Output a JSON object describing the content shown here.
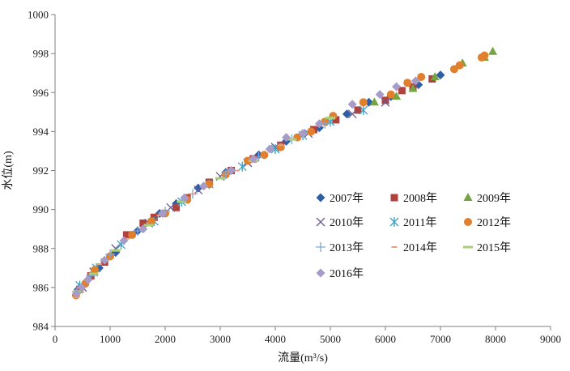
{
  "chart_data": {
    "type": "scatter",
    "xlabel": "流量(m³/s)",
    "ylabel": "水位(m)",
    "xlim": [
      0,
      9000
    ],
    "ylim": [
      984,
      1000
    ],
    "xticks": [
      "0",
      "1000",
      "2000",
      "3000",
      "4000",
      "5000",
      "6000",
      "7000",
      "8000",
      "9000"
    ],
    "yticks": [
      "984",
      "986",
      "988",
      "990",
      "992",
      "994",
      "996",
      "998",
      "1000"
    ],
    "grid": false,
    "legend_position": "inside-lower-right",
    "series": [
      {
        "name": "2007年",
        "marker": "diamond",
        "color": "#2e5fa6",
        "points": [
          [
            420,
            985.9
          ],
          [
            600,
            986.4
          ],
          [
            800,
            987.0
          ],
          [
            1100,
            987.8
          ],
          [
            1500,
            988.9
          ],
          [
            1900,
            989.8
          ],
          [
            2200,
            990.3
          ],
          [
            2600,
            991.1
          ],
          [
            3100,
            991.9
          ],
          [
            3700,
            992.8
          ],
          [
            4200,
            993.5
          ],
          [
            4800,
            994.2
          ],
          [
            5300,
            994.9
          ],
          [
            5700,
            995.5
          ],
          [
            6100,
            995.8
          ],
          [
            6600,
            996.4
          ],
          [
            7000,
            996.9
          ]
        ]
      },
      {
        "name": "2008年",
        "marker": "square",
        "color": "#b0413e",
        "points": [
          [
            450,
            985.9
          ],
          [
            650,
            986.6
          ],
          [
            900,
            987.3
          ],
          [
            1300,
            988.7
          ],
          [
            1600,
            989.3
          ],
          [
            1800,
            989.6
          ],
          [
            2200,
            990.1
          ],
          [
            2400,
            990.6
          ],
          [
            2800,
            991.4
          ],
          [
            3200,
            992.0
          ],
          [
            3600,
            992.6
          ],
          [
            4100,
            993.3
          ],
          [
            4700,
            994.1
          ],
          [
            5100,
            994.6
          ],
          [
            5500,
            995.1
          ],
          [
            6000,
            995.6
          ],
          [
            6300,
            996.1
          ],
          [
            6500,
            996.3
          ],
          [
            6850,
            996.7
          ]
        ]
      },
      {
        "name": "2009年",
        "marker": "triangle",
        "color": "#77a443",
        "points": [
          [
            5800,
            995.5
          ],
          [
            6200,
            995.8
          ],
          [
            6500,
            996.2
          ],
          [
            6900,
            996.8
          ],
          [
            7400,
            997.5
          ],
          [
            7800,
            997.8
          ],
          [
            7950,
            998.1
          ]
        ]
      },
      {
        "name": "2010年",
        "marker": "x",
        "color": "#6b5b95",
        "points": [
          [
            500,
            986.0
          ],
          [
            700,
            986.8
          ],
          [
            1100,
            988.0
          ],
          [
            1700,
            989.3
          ],
          [
            2100,
            990.1
          ],
          [
            2600,
            991.0
          ],
          [
            3000,
            991.7
          ],
          [
            3500,
            992.4
          ],
          [
            4000,
            993.2
          ],
          [
            4600,
            993.9
          ],
          [
            5400,
            994.9
          ],
          [
            6000,
            995.5
          ]
        ]
      },
      {
        "name": "2011年",
        "marker": "asterisk",
        "color": "#3aa2c2",
        "points": [
          [
            450,
            986.1
          ],
          [
            750,
            987.0
          ],
          [
            1200,
            988.2
          ],
          [
            1800,
            989.4
          ],
          [
            2300,
            990.4
          ],
          [
            2800,
            991.3
          ],
          [
            3400,
            992.2
          ],
          [
            4000,
            993.1
          ],
          [
            4500,
            993.8
          ],
          [
            5000,
            994.5
          ],
          [
            5600,
            995.1
          ]
        ]
      },
      {
        "name": "2012年",
        "marker": "circle",
        "color": "#e0802e",
        "points": [
          [
            380,
            985.6
          ],
          [
            550,
            986.2
          ],
          [
            720,
            986.9
          ],
          [
            1000,
            987.6
          ],
          [
            1400,
            988.7
          ],
          [
            1750,
            989.4
          ],
          [
            2000,
            989.8
          ],
          [
            2400,
            990.5
          ],
          [
            2800,
            991.3
          ],
          [
            3100,
            991.8
          ],
          [
            3500,
            992.5
          ],
          [
            3800,
            992.8
          ],
          [
            4100,
            993.2
          ],
          [
            4400,
            993.7
          ],
          [
            4650,
            994.0
          ],
          [
            4900,
            994.5
          ],
          [
            5050,
            994.8
          ],
          [
            5600,
            995.5
          ],
          [
            6100,
            995.9
          ],
          [
            6400,
            996.5
          ],
          [
            6650,
            996.8
          ],
          [
            7250,
            997.2
          ],
          [
            7350,
            997.4
          ],
          [
            7750,
            997.8
          ],
          [
            7800,
            997.9
          ]
        ]
      },
      {
        "name": "2013年",
        "marker": "plus",
        "color": "#7fa6d6",
        "points": [
          [
            400,
            985.8
          ],
          [
            650,
            986.6
          ],
          [
            1000,
            987.7
          ],
          [
            1500,
            988.9
          ],
          [
            2000,
            989.9
          ],
          [
            2500,
            990.8
          ],
          [
            3100,
            991.8
          ],
          [
            3700,
            992.7
          ],
          [
            4300,
            993.6
          ],
          [
            4900,
            994.4
          ]
        ]
      },
      {
        "name": "2014年",
        "marker": "dash",
        "color": "#e8a07f",
        "points": [
          [
            380,
            985.5
          ],
          [
            520,
            986.0
          ],
          [
            800,
            987.2
          ],
          [
            1300,
            988.5
          ],
          [
            1900,
            989.7
          ],
          [
            2500,
            990.8
          ],
          [
            3300,
            992.0
          ],
          [
            4100,
            993.3
          ],
          [
            4800,
            994.3
          ]
        ]
      },
      {
        "name": "2015年",
        "marker": "bar",
        "color": "#a9cf7a",
        "points": [
          [
            420,
            985.8
          ],
          [
            700,
            986.7
          ],
          [
            1100,
            987.9
          ],
          [
            1700,
            989.2
          ],
          [
            2300,
            990.4
          ],
          [
            3000,
            991.6
          ],
          [
            3600,
            992.5
          ],
          [
            4300,
            993.6
          ],
          [
            5000,
            994.7
          ]
        ]
      },
      {
        "name": "2016年",
        "marker": "diamond",
        "color": "#a79cc8",
        "points": [
          [
            390,
            985.7
          ],
          [
            480,
            986.0
          ],
          [
            600,
            986.4
          ],
          [
            900,
            987.4
          ],
          [
            1250,
            988.4
          ],
          [
            1600,
            989.0
          ],
          [
            1950,
            989.8
          ],
          [
            2350,
            990.6
          ],
          [
            2700,
            991.2
          ],
          [
            3200,
            992.0
          ],
          [
            3600,
            992.6
          ],
          [
            3900,
            993.1
          ],
          [
            4200,
            993.7
          ],
          [
            4500,
            993.9
          ],
          [
            4800,
            994.4
          ],
          [
            5400,
            995.4
          ],
          [
            5900,
            995.9
          ],
          [
            6200,
            996.3
          ],
          [
            6550,
            996.6
          ]
        ]
      }
    ]
  }
}
